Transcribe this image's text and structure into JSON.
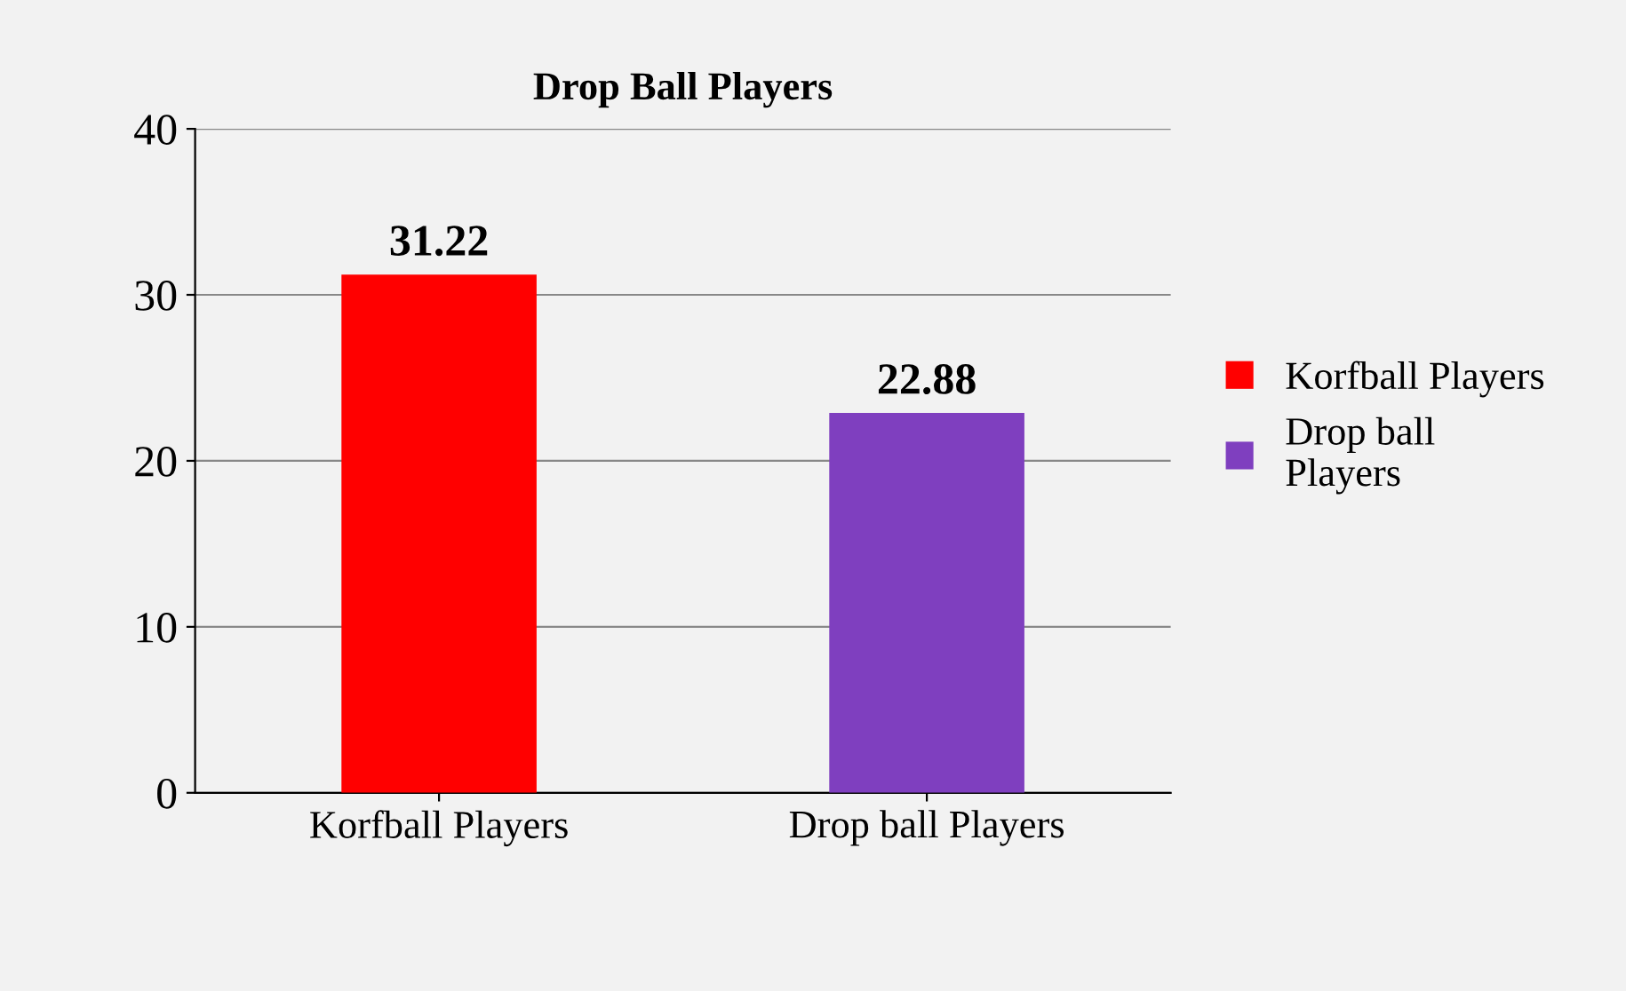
{
  "chart_data": {
    "type": "bar",
    "title": "Drop Ball Players",
    "categories": [
      "Korfball Players",
      "Drop ball Players"
    ],
    "series": [
      {
        "name": "Korfball Players",
        "color": "#ff0000",
        "values": [
          31.22,
          null
        ]
      },
      {
        "name": "Drop ball\nPlayers",
        "color": "#7f3fbf",
        "values": [
          null,
          22.88
        ]
      }
    ],
    "ylim": [
      0,
      40
    ],
    "yticks": [
      0,
      10,
      20,
      30,
      40
    ],
    "grid": "y",
    "legend": "right",
    "data_labels": true
  }
}
